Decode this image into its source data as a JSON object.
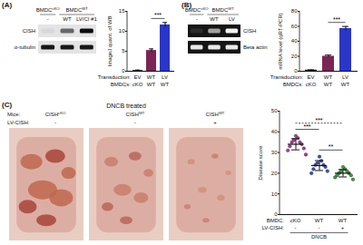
{
  "chart_data": [
    {
      "title": "(A)",
      "type": "bar",
      "ylabel": "ImageJ quant. of WB",
      "xlabel": "Transduction:",
      "categories": [
        "EV",
        "WT",
        "LV"
      ],
      "values": [
        0.2,
        5.2,
        11.6
      ],
      "errors": [
        0.1,
        0.4,
        0.6
      ],
      "colors": [
        "#222222",
        "#7b2455",
        "#2a36c8"
      ],
      "second_row": {
        "label": "BMDCs:",
        "labels": [
          "cKO",
          "WT",
          "WT"
        ]
      },
      "significance": [
        {
          "from": 1,
          "to": 2,
          "label": "***"
        }
      ],
      "ylim": [
        0,
        15
      ],
      "yticks": [
        0,
        5,
        10,
        15
      ]
    },
    {
      "title": "(B)",
      "type": "bar",
      "ylabel": "mRNA level (qRT-PCR)",
      "xlabel": "Transduction:",
      "categories": [
        "EV",
        "WT",
        "LV"
      ],
      "values": [
        1.5,
        20,
        57
      ],
      "errors": [
        0.4,
        1.5,
        2.8
      ],
      "colors": [
        "#222222",
        "#7b2455",
        "#2a36c8"
      ],
      "second_row": {
        "label": "BMDCs:",
        "labels": [
          "cKO",
          "WT",
          "WT"
        ]
      },
      "significance": [
        {
          "from": 1,
          "to": 2,
          "label": "***"
        }
      ],
      "ylim": [
        0,
        80
      ],
      "yticks": [
        0,
        20,
        40,
        60,
        80
      ]
    },
    {
      "title": "(C)",
      "type": "scatter",
      "ylabel": "Disease score",
      "xlabel": "BMDC:",
      "categories": [
        "cKO",
        "WT",
        "WT"
      ],
      "groups": [
        {
          "color": "#b03a9e",
          "values": [
            38,
            37,
            36,
            35,
            35,
            34,
            33,
            32,
            31,
            29
          ],
          "mean": 34,
          "error": 2.7
        },
        {
          "color": "#3b4fc4",
          "values": [
            28,
            26,
            25,
            24,
            24,
            23,
            22,
            21,
            20
          ],
          "mean": 23.7,
          "error": 2.4
        },
        {
          "color": "#3aa03a",
          "values": [
            23,
            22,
            21,
            21,
            20,
            20,
            19,
            19,
            18,
            17
          ],
          "mean": 20,
          "error": 1.8
        }
      ],
      "second_row": {
        "label": "LV-CISH:",
        "labels": [
          "-",
          "-",
          "+"
        ]
      },
      "footer": "DNCB",
      "significance": [
        {
          "from": 0,
          "to": 1,
          "label": "***"
        },
        {
          "from": 0,
          "to": 2,
          "label": "***"
        },
        {
          "from": 1,
          "to": 2,
          "label": "**"
        }
      ],
      "ylim": [
        0,
        50
      ],
      "yticks": [
        0,
        10,
        20,
        30,
        40,
        50
      ]
    }
  ],
  "blots": [
    {
      "type": "western",
      "groups": [
        {
          "base": "BMDC",
          "sup": "cKO",
          "span": 1
        },
        {
          "base": "BMDC",
          "sup": "WT",
          "span": 2
        }
      ],
      "lanes": [
        "-",
        "WT",
        "LV/CI #1"
      ],
      "rows": [
        {
          "label": "CISH",
          "intensity": [
            0.05,
            0.55,
            0.95
          ]
        },
        {
          "label": "α-tubulin",
          "intensity": [
            0.9,
            0.9,
            0.9
          ]
        }
      ]
    },
    {
      "type": "gel",
      "groups": [
        {
          "base": "BMDC",
          "sup": "cKO",
          "span": 1
        },
        {
          "base": "BMDC",
          "sup": "WT",
          "span": 2
        }
      ],
      "lanes": [
        "-",
        "WT",
        "LV"
      ],
      "rows": [
        {
          "label": "CISH",
          "intensity": [
            0.1,
            0.6,
            0.95
          ]
        },
        {
          "label": "Beta actin",
          "intensity": [
            0.9,
            0.9,
            0.9
          ]
        }
      ]
    }
  ],
  "photos": {
    "title": "DNCB treated",
    "rows": [
      {
        "label": "Mice:",
        "values": [
          {
            "base": "CISH",
            "sup": "cKO"
          },
          {
            "base": "CISH",
            "sup": "WT"
          },
          {
            "base": "CISH",
            "sup": "WT"
          }
        ]
      },
      {
        "label": "LV-CISH:",
        "values": [
          "-",
          "-",
          "+"
        ]
      }
    ]
  }
}
